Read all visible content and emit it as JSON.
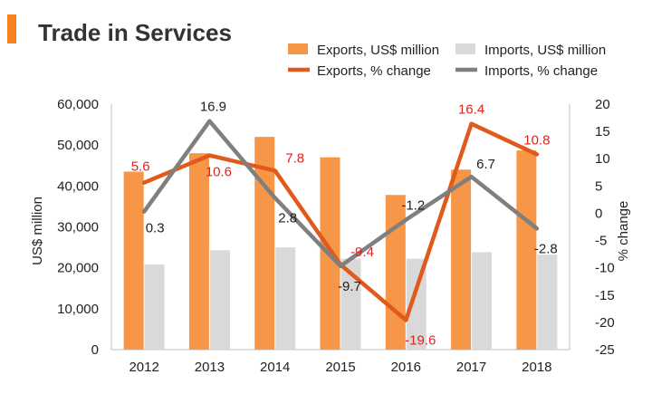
{
  "chart_data": {
    "type": "bar",
    "title": "Trade in Services",
    "categories": [
      "2012",
      "2013",
      "2014",
      "2015",
      "2016",
      "2017",
      "2018"
    ],
    "ylabel": "US$ million",
    "y2label": "% change",
    "ylim": [
      0,
      60000
    ],
    "y2lim": [
      -25,
      20
    ],
    "yticks": [
      "0",
      "10,000",
      "20,000",
      "30,000",
      "40,000",
      "50,000",
      "60,000"
    ],
    "y2ticks": [
      "-25",
      "-20",
      "-15",
      "-10",
      "-5",
      "0",
      "5",
      "10",
      "15",
      "20"
    ],
    "legend_position": "top-right",
    "series": [
      {
        "name": "Exports, US$ million",
        "type": "bar",
        "axis": "left",
        "color": "#F79646",
        "values": [
          43500,
          48000,
          52000,
          47000,
          37800,
          44000,
          48700
        ]
      },
      {
        "name": "Imports, US$ million",
        "type": "bar",
        "axis": "left",
        "color": "#D9D9D9",
        "values": [
          20800,
          24300,
          25000,
          22200,
          22200,
          23800,
          23200
        ]
      },
      {
        "name": "Exports, % change",
        "type": "line",
        "axis": "right",
        "color": "#E05A1B",
        "label_color": "#E0241C",
        "values": [
          5.6,
          10.6,
          7.8,
          -9.4,
          -19.6,
          16.4,
          10.8
        ],
        "labels": [
          "5.6",
          "10.6",
          "7.8",
          "-9.4",
          "-19.6",
          "16.4",
          "10.8"
        ]
      },
      {
        "name": "Imports, % change",
        "type": "line",
        "axis": "right",
        "color": "#7F7F7F",
        "label_color": "#222222",
        "values": [
          0.3,
          16.9,
          2.8,
          -9.7,
          -1.2,
          6.7,
          -2.8
        ],
        "labels": [
          "0.3",
          "16.9",
          "2.8",
          "-9.7",
          "-1.2",
          "6.7",
          "-2.8"
        ]
      }
    ]
  },
  "colors": {
    "accent": "#F5821F",
    "text": "#333333",
    "axis": "#BFBFBF"
  }
}
